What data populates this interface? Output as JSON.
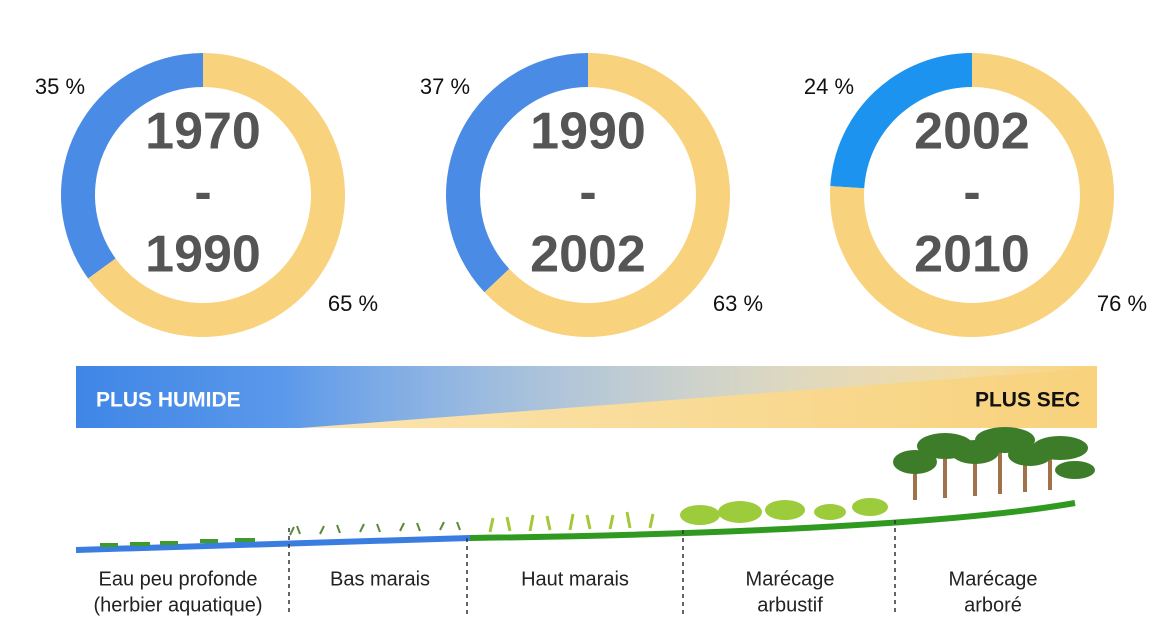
{
  "chart_data": [
    {
      "type": "pie",
      "center_label": [
        "1970",
        "-",
        "1990"
      ],
      "values": [
        35,
        65
      ],
      "value_labels": [
        "35 %",
        "65 %"
      ],
      "colors": [
        "#4a8be6",
        "#f8d27c"
      ]
    },
    {
      "type": "pie",
      "center_label": [
        "1990",
        "-",
        "2002"
      ],
      "values": [
        37,
        63
      ],
      "value_labels": [
        "37 %",
        "63 %"
      ],
      "colors": [
        "#4a8be6",
        "#f8d27c"
      ]
    },
    {
      "type": "pie",
      "center_label": [
        "2002",
        "-",
        "2010"
      ],
      "values": [
        24,
        76
      ],
      "value_labels": [
        "24 %",
        "76 %"
      ],
      "colors": [
        "#1c93ee",
        "#f8d27c"
      ]
    }
  ],
  "gradient": {
    "left": "PLUS HUMIDE",
    "right": "PLUS SEC"
  },
  "zones": [
    [
      "Eau peu profonde",
      "(herbier aquatique)"
    ],
    [
      "Bas marais"
    ],
    [
      "Haut marais"
    ],
    [
      "Marécage",
      "arbustif"
    ],
    [
      "Marécage",
      "arboré"
    ]
  ]
}
